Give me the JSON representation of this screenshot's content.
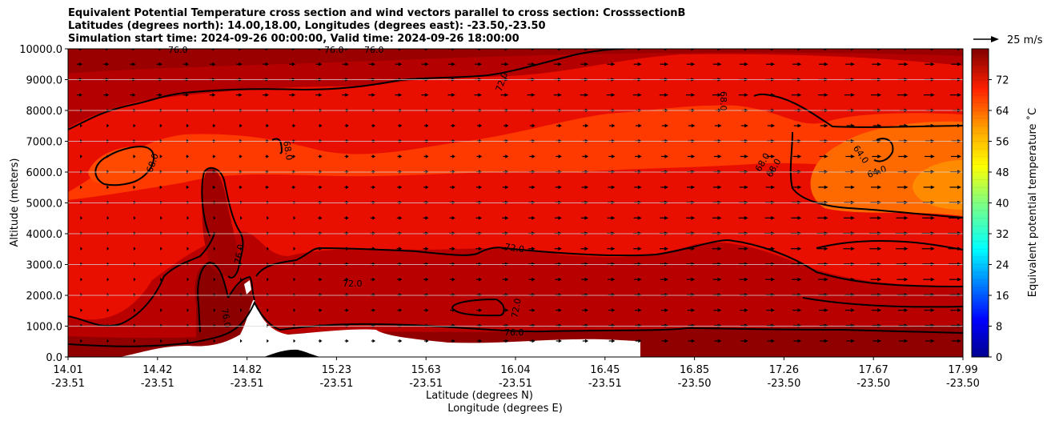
{
  "chart_data": {
    "type": "heatmap",
    "title_lines": [
      "Equivalent Potential Temperature cross section and wind vectors parallel to cross section: CrosssectionB",
      "Latitudes (degrees north): 14.00,18.00, Longitudes (degrees east): -23.50,-23.50",
      "Simulation start time: 2024-09-26 00:00:00, Valid time: 2024-09-26 18:00:00"
    ],
    "xlabel": "Latitude (degrees N)",
    "xlabel2": "Longitude (degrees E)",
    "ylabel": "Altitude (meters)",
    "ylim": [
      0,
      10000
    ],
    "y_ticks": [
      "0.0",
      "1000.0",
      "2000.0",
      "3000.0",
      "4000.0",
      "5000.0",
      "6000.0",
      "7000.0",
      "8000.0",
      "9000.0",
      "10000.0"
    ],
    "x_ticks_lat": [
      "14.01",
      "14.42",
      "14.82",
      "15.23",
      "15.63",
      "16.04",
      "16.45",
      "16.85",
      "17.26",
      "17.67",
      "17.99"
    ],
    "x_ticks_lon": [
      "-23.51",
      "-23.51",
      "-23.51",
      "-23.51",
      "-23.51",
      "-23.51",
      "-23.51",
      "-23.50",
      "-23.50",
      "-23.50",
      "-23.50"
    ],
    "grid": "horizontal",
    "colorbar": {
      "label": "Equivalent potential temperature ˚C",
      "range": [
        0,
        80
      ],
      "ticks": [
        "0",
        "8",
        "16",
        "24",
        "32",
        "40",
        "48",
        "56",
        "64",
        "72"
      ]
    },
    "quiver_key": {
      "label": "25 m/s"
    },
    "contour_labels": [
      "76.0",
      "76.0",
      "76.0",
      "72.0",
      "68.0",
      "68.0",
      "68.0",
      "68.0",
      "68.0",
      "64.0",
      "64.0",
      "76.0",
      "76.0",
      "72.0",
      "72.0",
      "72.0",
      "76.0"
    ]
  }
}
